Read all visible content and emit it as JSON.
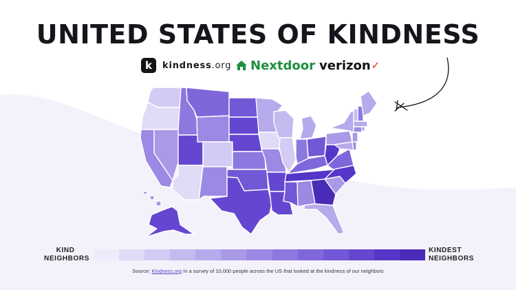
{
  "title": "UNITED STATES OF KINDNESS",
  "logos": {
    "kindness_badge": "k",
    "kindness_name": "kindness",
    "kindness_suffix": ".org",
    "nextdoor": "Nextdoor",
    "verizon": "verizon",
    "verizon_check": "✓"
  },
  "legend": {
    "left_label_line1": "KIND",
    "left_label_line2": "NEIGHBORS",
    "right_label_line1": "KINDEST",
    "right_label_line2": "NEIGHBORS",
    "scale_colors": [
      "#eeebfb",
      "#e0dbf7",
      "#d2cbf3",
      "#c4baef",
      "#b7aaeb",
      "#a999e7",
      "#9b89e3",
      "#8d78df",
      "#7f67db",
      "#7257d6",
      "#6446d1",
      "#5636c9",
      "#4a2bb7"
    ]
  },
  "source": {
    "prefix": "Source: ",
    "link": "Kindness.org",
    "text": " In a survey of 10,000 people across the US that looked at the kindness of our neighbors"
  },
  "colors": {
    "background_wave": "#f3f2fb",
    "nextdoor_green": "#1d8f3e",
    "verizon_red": "#e2231a"
  },
  "icons": {
    "kindness_logo": "k-badge-icon",
    "nextdoor_logo": "house-icon",
    "decoration": "curved-arrow-icon"
  },
  "map": {
    "type": "choropleth",
    "scale": "kind to kindest, levels 1-12",
    "states": [
      {
        "name": "Washington",
        "level": 2
      },
      {
        "name": "Oregon",
        "level": 1
      },
      {
        "name": "California",
        "level": 6
      },
      {
        "name": "Nevada",
        "level": 5
      },
      {
        "name": "Idaho",
        "level": 7
      },
      {
        "name": "Montana",
        "level": 8
      },
      {
        "name": "Wyoming",
        "level": 6
      },
      {
        "name": "Utah",
        "level": 10
      },
      {
        "name": "Colorado",
        "level": 2
      },
      {
        "name": "Arizona",
        "level": 1
      },
      {
        "name": "New Mexico",
        "level": 6
      },
      {
        "name": "North Dakota",
        "level": 9
      },
      {
        "name": "South Dakota",
        "level": 10
      },
      {
        "name": "Nebraska",
        "level": 10
      },
      {
        "name": "Kansas",
        "level": 7
      },
      {
        "name": "Oklahoma",
        "level": 9
      },
      {
        "name": "Texas",
        "level": 10
      },
      {
        "name": "Minnesota",
        "level": 4
      },
      {
        "name": "Iowa",
        "level": 1
      },
      {
        "name": "Missouri",
        "level": 6
      },
      {
        "name": "Arkansas",
        "level": 10
      },
      {
        "name": "Louisiana",
        "level": 10
      },
      {
        "name": "Wisconsin",
        "level": 3
      },
      {
        "name": "Illinois",
        "level": 2
      },
      {
        "name": "Michigan",
        "level": 4
      },
      {
        "name": "Indiana",
        "level": 7
      },
      {
        "name": "Kentucky",
        "level": 8
      },
      {
        "name": "Tennessee",
        "level": 11
      },
      {
        "name": "Mississippi",
        "level": 9
      },
      {
        "name": "Alabama",
        "level": 6
      },
      {
        "name": "Georgia",
        "level": 12
      },
      {
        "name": "Florida",
        "level": 4
      },
      {
        "name": "South Carolina",
        "level": 5
      },
      {
        "name": "North Carolina",
        "level": 11
      },
      {
        "name": "Virginia",
        "level": 8
      },
      {
        "name": "West Virginia",
        "level": 11
      },
      {
        "name": "Ohio",
        "level": 9
      },
      {
        "name": "Pennsylvania",
        "level": 5
      },
      {
        "name": "New York",
        "level": 4
      },
      {
        "name": "Maryland",
        "level": 4
      },
      {
        "name": "Delaware",
        "level": 6
      },
      {
        "name": "New Jersey",
        "level": 5
      },
      {
        "name": "Vermont",
        "level": 3
      },
      {
        "name": "New Hampshire",
        "level": 7
      },
      {
        "name": "Maine",
        "level": 4
      },
      {
        "name": "Massachusetts",
        "level": 4
      },
      {
        "name": "Connecticut",
        "level": 6
      },
      {
        "name": "Rhode Island",
        "level": 6
      },
      {
        "name": "Alaska",
        "level": 10
      },
      {
        "name": "Hawaii",
        "level": 5
      }
    ]
  }
}
